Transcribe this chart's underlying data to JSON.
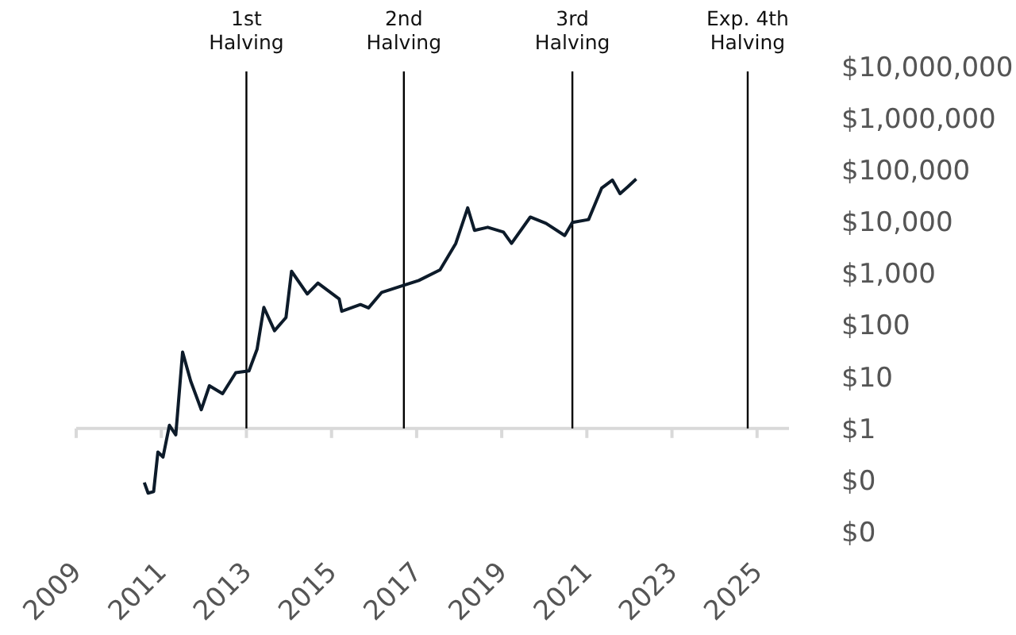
{
  "chart_data": {
    "type": "line",
    "log": "y",
    "x": [
      2010.6,
      2010.69,
      2010.82,
      2010.92,
      2011.04,
      2011.19,
      2011.34,
      2011.5,
      2011.69,
      2011.94,
      2012.13,
      2012.44,
      2012.75,
      2013.06,
      2013.25,
      2013.41,
      2013.66,
      2013.93,
      2014.06,
      2014.43,
      2014.68,
      2015.18,
      2015.24,
      2015.68,
      2015.87,
      2016.18,
      2016.67,
      2017.05,
      2017.55,
      2017.92,
      2018.2,
      2018.36,
      2018.67,
      2019.04,
      2019.23,
      2019.67,
      2020.04,
      2020.48,
      2020.66,
      2021.04,
      2021.35,
      2021.6,
      2021.78,
      2021.97,
      2022.16
    ],
    "series": [
      {
        "color": "#0d1b2a",
        "values": [
          0.09,
          0.056,
          0.06,
          0.35,
          0.28,
          1.15,
          0.75,
          30,
          8.3,
          2.3,
          6.7,
          4.7,
          12,
          13,
          34,
          220,
          78,
          140,
          1100,
          400,
          650,
          320,
          185,
          250,
          215,
          430,
          580,
          730,
          1170,
          3800,
          18600,
          6800,
          7800,
          6300,
          3800,
          12300,
          9300,
          5400,
          9700,
          11000,
          45000,
          64000,
          35000,
          48000,
          67000
        ]
      }
    ],
    "xlim": [
      2009,
      2025.75
    ],
    "xticks": [
      2009,
      2011,
      2013,
      2015,
      2017,
      2019,
      2021,
      2023,
      2025
    ],
    "ylim": [
      0.01,
      10000000
    ],
    "yticks": [
      {
        "value": 0.01,
        "label": "$0"
      },
      {
        "value": 0.1,
        "label": "$0"
      },
      {
        "value": 1,
        "label": "$1"
      },
      {
        "value": 10,
        "label": "$10"
      },
      {
        "value": 100,
        "label": "$100"
      },
      {
        "value": 1000,
        "label": "$1,000"
      },
      {
        "value": 10000,
        "label": "$10,000"
      },
      {
        "value": 100000,
        "label": "$100,000"
      },
      {
        "value": 1000000,
        "label": "$1,000,000"
      },
      {
        "value": 10000000,
        "label": "$10,000,000"
      }
    ],
    "ref_lines": [
      {
        "axis": "y",
        "value": 1,
        "color": "#d9d9d9"
      },
      {
        "axis": "x",
        "value": 2013.0,
        "label": "1st\nHalving",
        "color": "#000000"
      },
      {
        "axis": "x",
        "value": 2016.7,
        "label": "2nd\nHalving",
        "color": "#000000"
      },
      {
        "axis": "x",
        "value": 2020.66,
        "label": "3rd\nHalving",
        "color": "#000000"
      },
      {
        "axis": "x",
        "value": 2024.78,
        "label": "Exp. 4th\nHalving",
        "color": "#000000"
      }
    ],
    "grid": false
  }
}
